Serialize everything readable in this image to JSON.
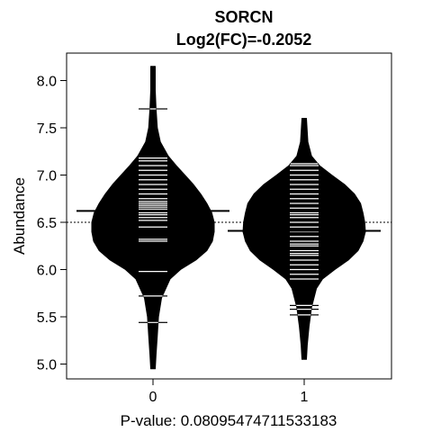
{
  "chart_data": {
    "type": "beanplot",
    "title": "SORCN",
    "subtitle": "Log2(FC)=-0.2052",
    "xlabel": "P-value: 0.08095474711533183",
    "ylabel": "Abundance",
    "categories": [
      "0",
      "1"
    ],
    "ylim": [
      4.9,
      8.3
    ],
    "yticks": [
      5.0,
      5.5,
      6.0,
      6.5,
      7.0,
      7.5,
      8.0
    ],
    "ytick_labels": [
      "5.0",
      "5.5",
      "6.0",
      "6.5",
      "7.0",
      "7.5",
      "8.0"
    ],
    "overall_mean": 6.5,
    "grid": false,
    "series": [
      {
        "category": "0",
        "mean": 6.62,
        "range": [
          4.95,
          8.15
        ],
        "density": [
          [
            4.95,
            0.0
          ],
          [
            5.1,
            0.05
          ],
          [
            5.3,
            0.07
          ],
          [
            5.5,
            0.09
          ],
          [
            5.7,
            0.14
          ],
          [
            5.9,
            0.28
          ],
          [
            6.0,
            0.45
          ],
          [
            6.1,
            0.7
          ],
          [
            6.2,
            0.88
          ],
          [
            6.3,
            0.97
          ],
          [
            6.4,
            1.0
          ],
          [
            6.5,
            1.0
          ],
          [
            6.6,
            0.96
          ],
          [
            6.7,
            0.88
          ],
          [
            6.8,
            0.78
          ],
          [
            6.9,
            0.66
          ],
          [
            7.0,
            0.52
          ],
          [
            7.1,
            0.38
          ],
          [
            7.2,
            0.25
          ],
          [
            7.35,
            0.12
          ],
          [
            7.5,
            0.07
          ],
          [
            7.7,
            0.05
          ],
          [
            7.9,
            0.03
          ],
          [
            8.15,
            0.0
          ]
        ],
        "points": [
          5.44,
          5.72,
          5.98,
          6.3,
          6.32,
          6.45,
          6.52,
          6.55,
          6.58,
          6.6,
          6.62,
          6.64,
          6.66,
          6.68,
          6.7,
          6.72,
          6.75,
          6.8,
          6.85,
          6.9,
          6.95,
          7.0,
          7.05,
          7.1,
          7.15,
          7.18,
          7.7
        ]
      },
      {
        "category": "1",
        "mean": 6.41,
        "range": [
          5.05,
          7.6
        ],
        "density": [
          [
            5.05,
            0.0
          ],
          [
            5.2,
            0.05
          ],
          [
            5.4,
            0.08
          ],
          [
            5.6,
            0.12
          ],
          [
            5.8,
            0.2
          ],
          [
            5.9,
            0.3
          ],
          [
            6.0,
            0.5
          ],
          [
            6.1,
            0.72
          ],
          [
            6.2,
            0.88
          ],
          [
            6.3,
            0.96
          ],
          [
            6.4,
            1.0
          ],
          [
            6.5,
            0.99
          ],
          [
            6.6,
            0.96
          ],
          [
            6.7,
            0.92
          ],
          [
            6.8,
            0.82
          ],
          [
            6.9,
            0.66
          ],
          [
            7.0,
            0.45
          ],
          [
            7.1,
            0.25
          ],
          [
            7.2,
            0.12
          ],
          [
            7.35,
            0.06
          ],
          [
            7.6,
            0.0
          ]
        ],
        "points": [
          5.52,
          5.58,
          5.62,
          5.9,
          5.95,
          6.0,
          6.05,
          6.1,
          6.15,
          6.17,
          6.2,
          6.25,
          6.27,
          6.3,
          6.35,
          6.4,
          6.45,
          6.5,
          6.55,
          6.58,
          6.6,
          6.65,
          6.7,
          6.75,
          6.8,
          6.85,
          6.9,
          6.95,
          7.0,
          7.05,
          7.1,
          7.12
        ]
      }
    ]
  }
}
